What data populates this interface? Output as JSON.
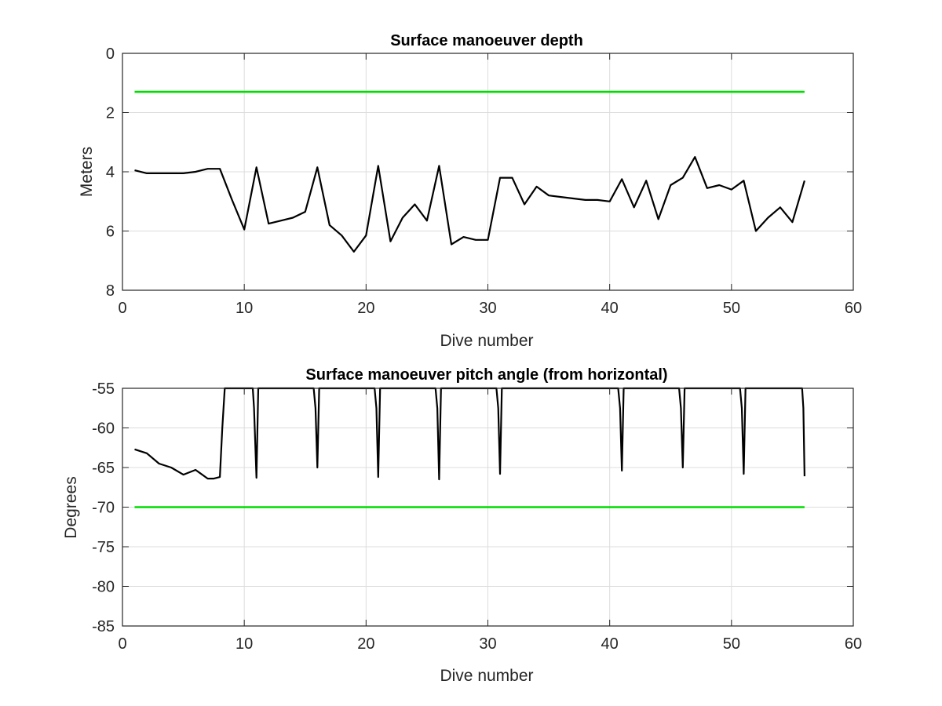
{
  "chart_data": [
    {
      "type": "line",
      "title": "Surface manoeuver depth",
      "xlabel": "Dive number",
      "ylabel": "Meters",
      "xlim": [
        0,
        60
      ],
      "ylim": [
        0,
        8
      ],
      "y_reversed": true,
      "grid": true,
      "xticks": [
        0,
        10,
        20,
        30,
        40,
        50,
        60
      ],
      "yticks": [
        0,
        2,
        4,
        6,
        8
      ],
      "xtick_labels": [
        "0",
        "10",
        "20",
        "30",
        "40",
        "50",
        "60"
      ],
      "ytick_labels": [
        "0",
        "2",
        "4",
        "6",
        "8"
      ],
      "series": [
        {
          "color": "#000000",
          "x": [
            1,
            2,
            3,
            4,
            5,
            6,
            7,
            8,
            9,
            10,
            11,
            12,
            13,
            14,
            15,
            16,
            17,
            18,
            19,
            20,
            21,
            22,
            23,
            24,
            25,
            26,
            27,
            28,
            29,
            30,
            31,
            32,
            33,
            34,
            35,
            36,
            37,
            38,
            39,
            40,
            41,
            42,
            43,
            44,
            45,
            46,
            47,
            48,
            49,
            50,
            51,
            52,
            53,
            54,
            55,
            56
          ],
          "y": [
            3.95,
            4.05,
            4.05,
            4.05,
            4.05,
            4.0,
            3.9,
            3.9,
            4.95,
            5.95,
            3.85,
            5.75,
            5.65,
            5.55,
            5.35,
            3.85,
            5.8,
            6.15,
            6.7,
            6.15,
            3.8,
            6.35,
            5.55,
            5.1,
            5.65,
            3.8,
            6.45,
            6.2,
            6.3,
            6.3,
            4.2,
            4.2,
            5.1,
            4.5,
            4.8,
            4.85,
            4.9,
            4.95,
            4.95,
            5.0,
            4.25,
            5.2,
            4.3,
            5.6,
            4.45,
            4.2,
            3.5,
            4.55,
            4.45,
            4.6,
            4.3,
            6.0,
            5.55,
            5.2,
            5.7,
            4.3
          ]
        },
        {
          "color": "#00dd00",
          "x": [
            1,
            56
          ],
          "y": [
            1.3,
            1.3
          ]
        }
      ]
    },
    {
      "type": "line",
      "title": "Surface manoeuver pitch angle (from horizontal)",
      "xlabel": "Dive number",
      "ylabel": "Degrees",
      "xlim": [
        0,
        60
      ],
      "ylim": [
        -85,
        -55
      ],
      "grid": true,
      "xticks": [
        0,
        10,
        20,
        30,
        40,
        50,
        60
      ],
      "yticks": [
        -85,
        -80,
        -75,
        -70,
        -65,
        -60,
        -55
      ],
      "xtick_labels": [
        "0",
        "10",
        "20",
        "30",
        "40",
        "50",
        "60"
      ],
      "ytick_labels": [
        "-85",
        "-80",
        "-75",
        "-70",
        "-65",
        "-60",
        "-55"
      ],
      "series": [
        {
          "color": "#000000",
          "x": [
            1,
            2,
            3,
            4,
            5,
            6,
            7,
            7.5,
            8,
            8.2,
            8.4,
            10.7,
            10.8,
            11.0,
            11.15,
            15.7,
            15.85,
            16.0,
            16.15,
            20.7,
            20.85,
            21.0,
            21.15,
            25.7,
            25.85,
            26.0,
            26.15,
            30.7,
            30.85,
            31.0,
            31.15,
            40.7,
            40.85,
            41.0,
            41.15,
            45.7,
            45.85,
            46.0,
            46.15,
            50.7,
            50.85,
            51.0,
            51.15,
            55.8,
            55.9,
            56.0
          ],
          "y": [
            -62.7,
            -63.2,
            -64.5,
            -65.0,
            -65.9,
            -65.3,
            -66.4,
            -66.4,
            -66.2,
            -60.0,
            -55.0,
            -55.0,
            -57.5,
            -66.3,
            -55.0,
            -55.0,
            -57.5,
            -65.0,
            -55.0,
            -55.0,
            -57.5,
            -66.2,
            -55.0,
            -55.0,
            -57.5,
            -66.5,
            -55.0,
            -55.0,
            -57.5,
            -65.8,
            -55.0,
            -55.0,
            -57.5,
            -65.4,
            -55.0,
            -55.0,
            -57.5,
            -65.0,
            -55.0,
            -55.0,
            -57.5,
            -65.8,
            -55.0,
            -55.0,
            -57.5,
            -66.1
          ]
        },
        {
          "color": "#00dd00",
          "x": [
            1,
            56
          ],
          "y": [
            -70,
            -70
          ]
        }
      ]
    }
  ]
}
